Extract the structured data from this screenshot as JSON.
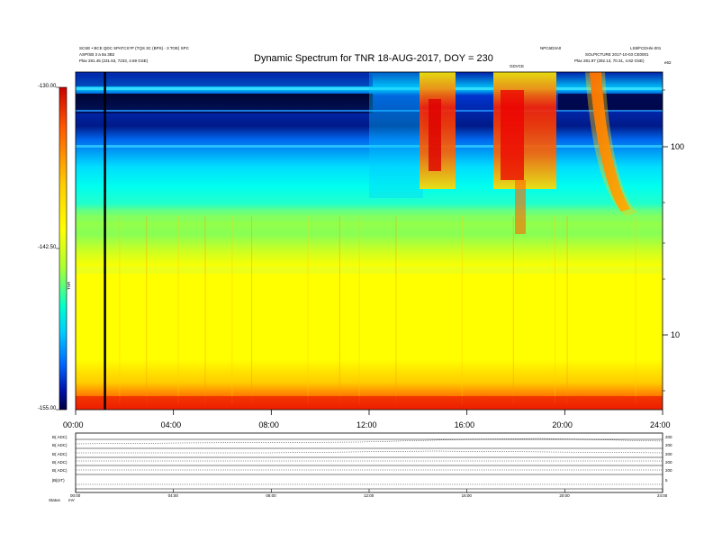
{
  "header": {
    "left_line1": "SCSE • BCE QDC SPATCS?P (TQS 3C (BPS) - 3 TOE) SPC",
    "left_line2": "ASP/SB 3 a 8a 3B2",
    "left_line3": "Plax   281.45 (231.63, 7233, 4.69 GSE)",
    "right_top_center": "NPC6D3A0",
    "right_top_right": "LS8/FCDH/e.001",
    "right_line2": "SOLPICTURE 2017-10-03 CE0001",
    "right_line3": "Plax   281.97 (282.13, 70.31, 4.82 GSE)",
    "right_edge": "e62",
    "marker": "GDVCE"
  },
  "chart_data": {
    "type": "heatmap",
    "title": "Dynamic Spectrum for TNR 18-AUG-2017, DOY = 230",
    "x_ticks": [
      "00:00",
      "04:00",
      "08:00",
      "12:00",
      "16:00",
      "20:00",
      "24:00"
    ],
    "xlim_hours": [
      0,
      24
    ],
    "y_axis_scale": "log",
    "y_ticks": [
      "100",
      "10"
    ],
    "y_tick_values": [
      100,
      10
    ],
    "colorbar": {
      "ticks": [
        "-130.00",
        "-142.50",
        "-155.00"
      ],
      "tick_values": [
        -130.0,
        -142.5,
        -155.0
      ],
      "label": "TNR",
      "colors_top_to_bottom": [
        "#cc0000",
        "#ff2200",
        "#ff8800",
        "#ffcc00",
        "#ffff00",
        "#aaff33",
        "#00ffcc",
        "#00ddff",
        "#0077ff",
        "#0011aa",
        "#000040"
      ]
    },
    "vertical_marker_hour": 1.2,
    "bursts": [
      {
        "start_hour": 14.3,
        "end_hour": 15.3,
        "color": "#ff2a00"
      },
      {
        "start_hour": 17.2,
        "end_hour": 18.8,
        "color": "#ff2a00"
      },
      {
        "start_hour": 20.9,
        "end_hour": 22.4,
        "color": "#ff3300"
      }
    ]
  },
  "subpanels": {
    "rows": [
      {
        "label": "B( ADC)",
        "right": "200"
      },
      {
        "label": "B( ADC)",
        "right": "200"
      },
      {
        "label": "B( ADC)",
        "right": "200"
      },
      {
        "label": "B( ADC)",
        "right": "200"
      },
      {
        "label": "B( ADC)",
        "right": "200"
      },
      {
        "label": "|B|(nT)",
        "right": "5"
      }
    ],
    "x_ticks": [
      "00:00",
      "04:00",
      "08:00",
      "12:00",
      "16:00",
      "20:00",
      "24:00"
    ],
    "footer_left": "Status",
    "footer_unit": "mV"
  }
}
